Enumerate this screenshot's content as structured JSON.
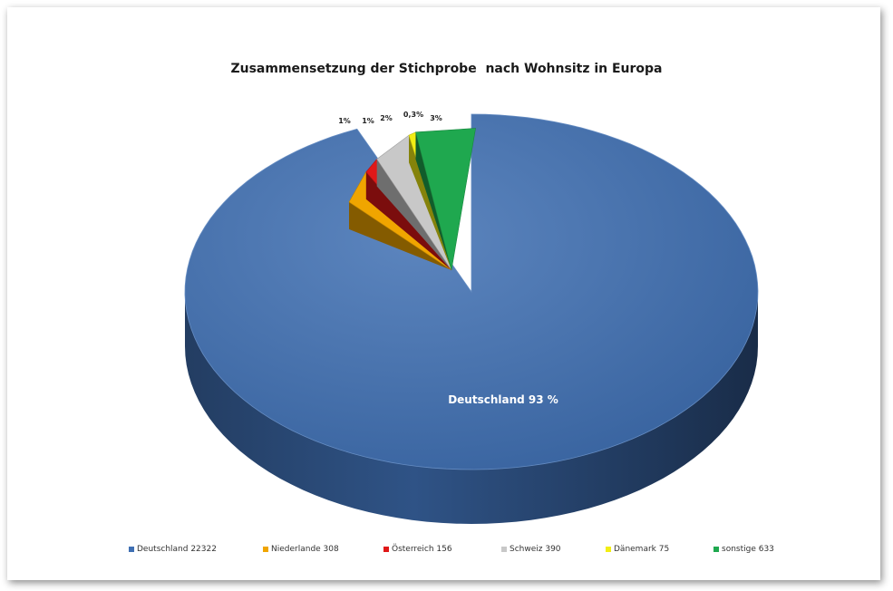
{
  "chart_data": {
    "type": "pie",
    "title": "Zusammensetzung der Stichprobe  nach Wohnsitz in Europa",
    "categories": [
      "Deutschland",
      "Niederlande",
      "Österreich",
      "Schweiz",
      "Dänemark",
      "sonstige"
    ],
    "values": [
      22322,
      308,
      156,
      390,
      75,
      633
    ],
    "data_labels": [
      "Deutschland 93 %",
      "1%",
      "1%",
      "2%",
      "0,3%",
      "3%"
    ],
    "legend": [
      "Deutschland 22322",
      "Niederlande 308",
      "Österreich 156",
      "Schweiz 390",
      "Dänemark 75",
      "sonstige 633"
    ],
    "legend_position": "bottom",
    "colors": [
      "#3F6FB3",
      "#F0A500",
      "#E01818",
      "#C8C8C8",
      "#F2EE14",
      "#1FA84F"
    ],
    "style": "3d-exploded"
  }
}
